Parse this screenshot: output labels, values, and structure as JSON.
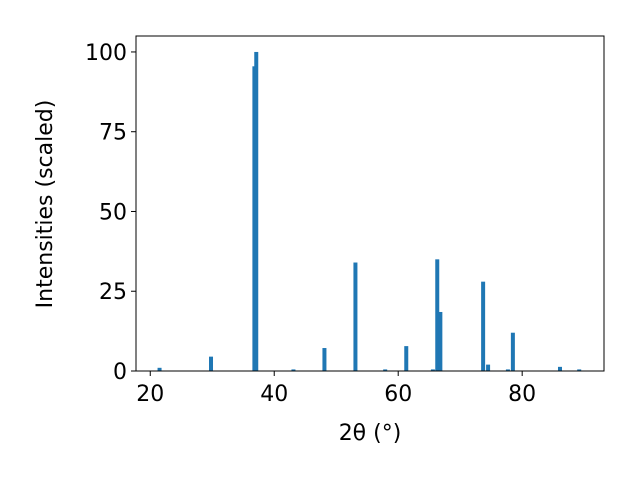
{
  "chart_data": {
    "type": "bar",
    "x": [
      21.5,
      29.8,
      36.8,
      37.1,
      43.1,
      48.1,
      53.1,
      57.9,
      61.3,
      65.6,
      66.3,
      66.8,
      73.7,
      74.5,
      77.7,
      78.5,
      86.1,
      89.2
    ],
    "values": [
      1,
      4.5,
      95.5,
      100,
      0.5,
      7.2,
      34,
      0.5,
      7.8,
      0.5,
      35,
      18.5,
      28,
      2,
      0.5,
      12,
      1.3,
      0.5
    ],
    "color": "#1f77b4",
    "xlabel": "2θ (°)",
    "ylabel": "Intensities (scaled)",
    "xlim": [
      17.7,
      93.2
    ],
    "ylim": [
      0,
      105
    ],
    "xticks": [
      20,
      40,
      60,
      80
    ],
    "yticks": [
      0,
      25,
      50,
      75,
      100
    ]
  }
}
